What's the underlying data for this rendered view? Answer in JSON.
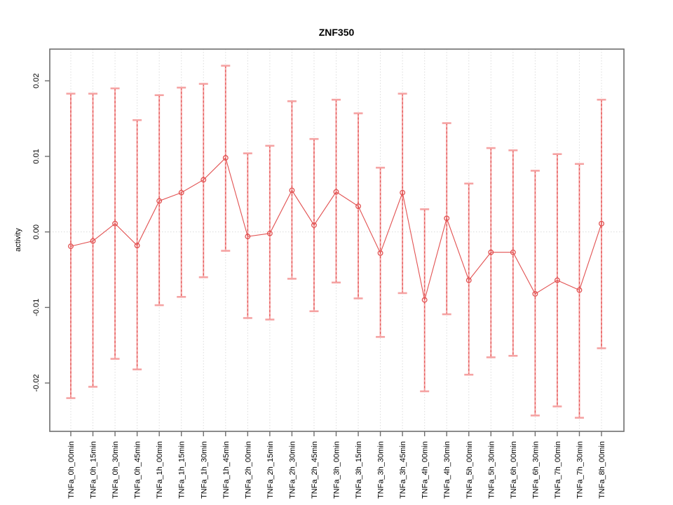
{
  "chart_data": {
    "type": "scatter",
    "title": "ZNF350",
    "ylabel": "activity",
    "xlabel": "",
    "legend_position": "none",
    "grid": "dotted vertical line at every category; dotted horizontal line at y=0",
    "ylim": [
      -0.0264,
      0.0242
    ],
    "yticks": [
      0.02,
      0.01,
      0.0,
      -0.01,
      -0.02
    ],
    "ytick_labels": [
      "0.02",
      "0.01",
      "0.00",
      "-0.01",
      "-0.02"
    ],
    "categories": [
      "TNFa_0h_00min",
      "TNFa_0h_15min",
      "TNFa_0h_30min",
      "TNFa_0h_45min",
      "TNFa_1h_00min",
      "TNFa_1h_15min",
      "TNFa_1h_30min",
      "TNFa_1h_45min",
      "TNFa_2h_00min",
      "TNFa_2h_15min",
      "TNFa_2h_30min",
      "TNFa_2h_45min",
      "TNFa_3h_00min",
      "TNFa_3h_15min",
      "TNFa_3h_30min",
      "TNFa_3h_45min",
      "TNFa_4h_00min",
      "TNFa_4h_30min",
      "TNFa_5h_00min",
      "TNFa_5h_30min",
      "TNFa_6h_00min",
      "TNFa_6h_30min",
      "TNFa_7h_00min",
      "TNFa_7h_30min",
      "TNFa_8h_00min"
    ],
    "series": [
      {
        "name": "activity",
        "marker": "open-circle",
        "values": [
          -0.0019,
          -0.0012,
          0.0011,
          -0.0018,
          0.0041,
          0.0052,
          0.0069,
          0.0098,
          -0.0006,
          -0.0002,
          0.0055,
          0.0009,
          0.0053,
          0.0034,
          -0.0028,
          0.0052,
          -0.009,
          0.0018,
          -0.0064,
          -0.0027,
          -0.0027,
          -0.0082,
          -0.0064,
          -0.0077,
          0.0011
        ],
        "error_upper": [
          0.0183,
          0.0183,
          0.019,
          0.0148,
          0.0181,
          0.0191,
          0.0196,
          0.022,
          0.0104,
          0.0114,
          0.0173,
          0.0123,
          0.0175,
          0.0157,
          0.0085,
          0.0183,
          0.003,
          0.0144,
          0.0064,
          0.0111,
          0.0108,
          0.0081,
          0.0103,
          0.009,
          0.0175
        ],
        "error_lower": [
          -0.022,
          -0.0205,
          -0.0168,
          -0.0182,
          -0.0097,
          -0.0086,
          -0.006,
          -0.0025,
          -0.0114,
          -0.0116,
          -0.0062,
          -0.0105,
          -0.0067,
          -0.0088,
          -0.0139,
          -0.0081,
          -0.0211,
          -0.0109,
          -0.0189,
          -0.0166,
          -0.0164,
          -0.0243,
          -0.0231,
          -0.0246,
          -0.0154
        ]
      }
    ],
    "colors": {
      "point_and_line": "#e25252",
      "errorbar_cap_and_stem": "#f5a3a3",
      "errorbar_dash_overlay": "#e25252",
      "gridline": "#dcdcdc",
      "frame": "#6e6e6e",
      "text": "#000000"
    }
  }
}
